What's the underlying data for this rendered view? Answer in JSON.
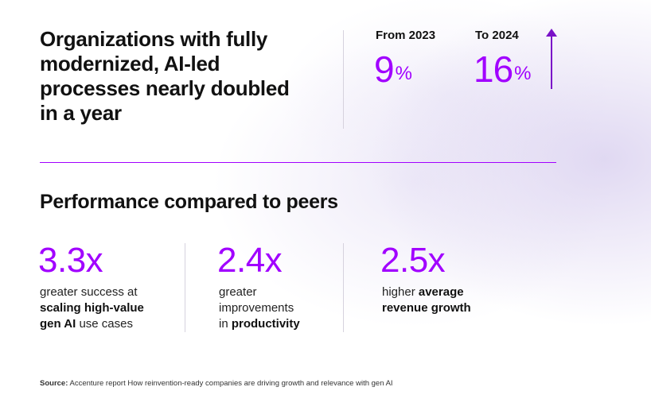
{
  "headline": {
    "line1": "Organizations with fully",
    "line2": "modernized, AI-led",
    "line3": "processes nearly doubled",
    "line4": "in a year"
  },
  "comparison": {
    "from_label": "From 2023",
    "from_value": "9",
    "to_label": "To 2024",
    "to_value": "16",
    "percent_sign": "%",
    "accent_color": "#a100ff",
    "arrow_icon": "up-arrow"
  },
  "section_title": "Performance compared to peers",
  "stats": [
    {
      "value": "3.3x",
      "line1_a": "greater success at",
      "line2_bold": "scaling high-value",
      "line3_bold": "gen AI",
      "line3_rest": " use cases"
    },
    {
      "value": "2.4x",
      "line1": "greater",
      "line2": "improvements",
      "line3_a": "in ",
      "line3_bold": "productivity"
    },
    {
      "value": "2.5x",
      "line1_a": "higher ",
      "line1_bold": "average",
      "line2_bold": "revenue growth"
    }
  ],
  "source": {
    "label": "Source:",
    "text": " Accenture report How reinvention-ready companies are driving growth and relevance with gen AI"
  }
}
